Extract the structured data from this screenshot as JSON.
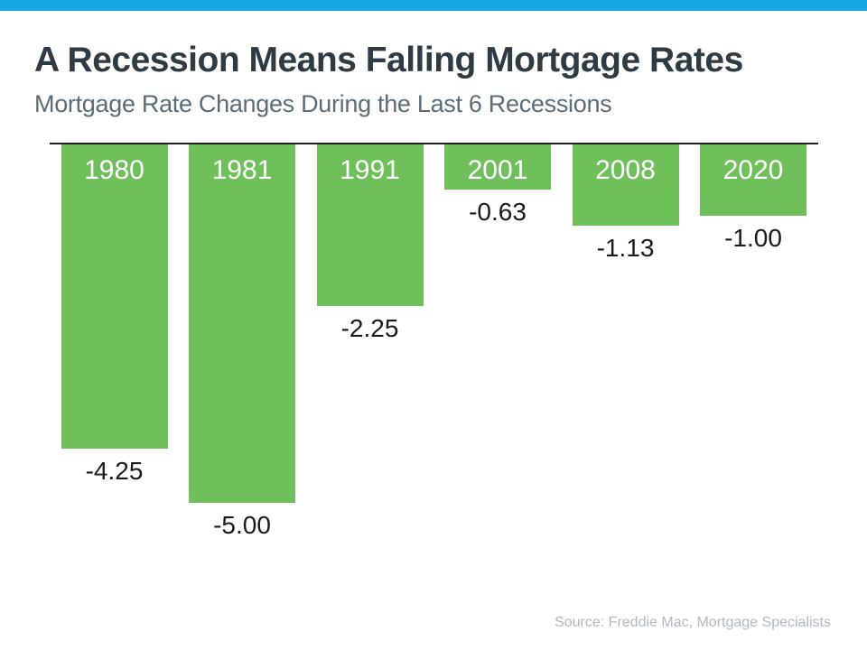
{
  "page": {
    "title": "A Recession Means Falling Mortgage Rates",
    "subtitle": "Mortgage Rate Changes During the Last 6 Recessions",
    "source": "Source: Freddie Mac, Mortgage Specialists"
  },
  "colors": {
    "accent_strip": "#17A8E3",
    "bar_green": "#6FBF5B",
    "title_text": "#2E3B45",
    "subtitle_text": "#5B6C77",
    "value_text": "#1A1A1A",
    "baseline": "#1F1F1F",
    "source_text": "#B2B8BE"
  },
  "chart_data": {
    "type": "bar",
    "orientation": "vertical-below-baseline",
    "title": "A Recession Means Falling Mortgage Rates",
    "subtitle": "Mortgage Rate Changes During the Last 6 Recessions",
    "categories": [
      "1980",
      "1981",
      "1991",
      "2001",
      "2008",
      "2020"
    ],
    "values": [
      -4.25,
      -5.0,
      -2.25,
      -0.63,
      -1.13,
      -1.0
    ],
    "value_labels": [
      "-4.25",
      "-5.00",
      "-2.25",
      "-0.63",
      "-1.13",
      "-1.00"
    ],
    "xlabel": "",
    "ylabel": "",
    "ylim": [
      -5.5,
      0
    ],
    "baseline_value": 0,
    "grid": false,
    "legend": false,
    "bar_color": "#6FBF5B",
    "category_label_position": "inside-top-white",
    "value_label_position": "below-bar-black"
  }
}
